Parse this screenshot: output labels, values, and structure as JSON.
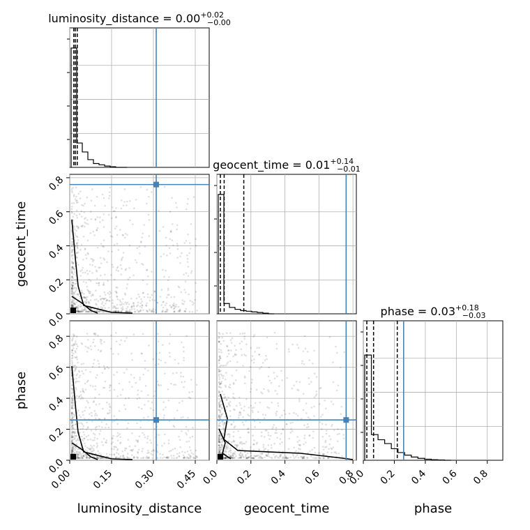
{
  "chart_data": {
    "type": "corner",
    "parameters": [
      {
        "name": "luminosity_distance",
        "axis_label": "luminosity_distance",
        "title_main": "luminosity_distance = 0.00",
        "title_sup": "+0.02",
        "title_sub": "−0.00",
        "range": [
          0,
          0.5
        ],
        "ticks": [
          0.0,
          0.15,
          0.3,
          0.45
        ],
        "tick_labels": [
          "0.00",
          "0.15",
          "0.30",
          "0.45"
        ],
        "quantiles": [
          0.002,
          0.0,
          0.022
        ],
        "truth": 0.31,
        "hist_max": 1.0,
        "hist": [
          0.93,
          0.19,
          0.12,
          0.06,
          0.03,
          0.02,
          0.01,
          0.005,
          0.0,
          0.0
        ]
      },
      {
        "name": "geocent_time",
        "axis_label": "geocent_time",
        "title_main": "geocent_time = 0.01",
        "title_sup": "+0.14",
        "title_sub": "−0.01",
        "range": [
          0,
          0.82
        ],
        "ticks": [
          0.0,
          0.2,
          0.4,
          0.6,
          0.8
        ],
        "tick_labels": [
          "0.0",
          "0.2",
          "0.4",
          "0.6",
          "0.8"
        ],
        "quantiles": [
          0.0,
          0.01,
          0.15
        ],
        "truth": 0.76,
        "hist_max": 1.0,
        "hist": [
          0.93,
          0.08,
          0.05,
          0.035,
          0.025,
          0.02,
          0.015,
          0.01,
          0.005,
          0.0
        ]
      },
      {
        "name": "phase",
        "axis_label": "phase",
        "title_main": "phase = 0.03",
        "title_sup": "+0.18",
        "title_sub": "−0.03",
        "range": [
          0,
          0.9
        ],
        "ticks": [
          0.0,
          0.2,
          0.4,
          0.6,
          0.8
        ],
        "tick_labels": [
          "0.0",
          "0.2",
          "0.4",
          "0.6",
          "0.8"
        ],
        "quantiles": [
          0.0,
          0.03,
          0.21
        ],
        "truth": 0.26,
        "hist_max": 1.0,
        "hist": [
          0.82,
          0.2,
          0.16,
          0.13,
          0.09,
          0.06,
          0.04,
          0.025,
          0.015,
          0.008,
          0.004,
          0.002,
          0.0
        ]
      }
    ],
    "grid": true,
    "truth_color": "#4682b4",
    "scatter_color": "#000000"
  }
}
